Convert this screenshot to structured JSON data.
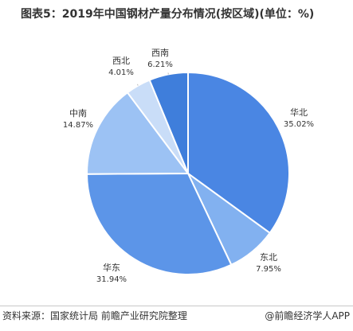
{
  "title": "图表5：2019年中国钢材产量分布情况(按区域)(单位：%)",
  "source": "资料来源：国家统计局 前瞻产业研究院整理",
  "brand": "@前瞻经济学人APP",
  "chart_data": {
    "type": "pie",
    "title": "图表5：2019年中国钢材产量分布情况(按区域)(单位：%)",
    "start_angle_deg": 0,
    "direction": "clockwise",
    "slices": [
      {
        "label": "华北",
        "value": 35.02,
        "value_label": "35.02%",
        "color": "#4a86e3"
      },
      {
        "label": "东北",
        "value": 7.95,
        "value_label": "7.95%",
        "color": "#82b1f0"
      },
      {
        "label": "华东",
        "value": 31.94,
        "value_label": "31.94%",
        "color": "#5c95e8"
      },
      {
        "label": "中南",
        "value": 14.87,
        "value_label": "14.87%",
        "color": "#9cc2f4"
      },
      {
        "label": "西北",
        "value": 4.01,
        "value_label": "4.01%",
        "color": "#c9ddf8"
      },
      {
        "label": "西南",
        "value": 6.21,
        "value_label": "6.21%",
        "color": "#3f7edb"
      }
    ]
  }
}
